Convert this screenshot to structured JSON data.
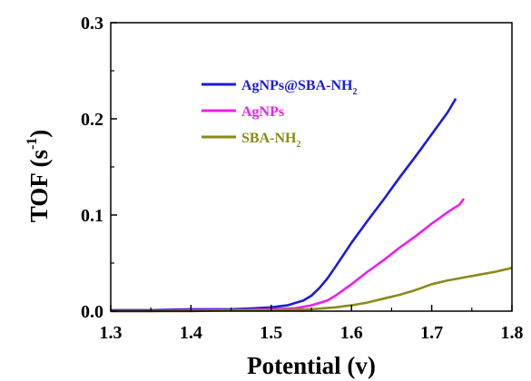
{
  "chart_data": {
    "type": "line",
    "xlabel": "Potential (v)",
    "ylabel": "TOF (s",
    "ylabel_sup": "-1",
    "ylabel_close": ")",
    "xlim": [
      1.3,
      1.8
    ],
    "ylim": [
      0.0,
      0.3
    ],
    "xticks": [
      "1.3",
      "1.4",
      "1.5",
      "1.6",
      "1.7",
      "1.8"
    ],
    "yticks": [
      "0.0",
      "0.1",
      "0.2",
      "0.3"
    ],
    "grid": false,
    "legend_position": "upper-left-center",
    "series": [
      {
        "name": "AgNPs@SBA-NH",
        "name_sub": "2",
        "color": "#1c1cd6",
        "x": [
          1.3,
          1.35,
          1.4,
          1.45,
          1.48,
          1.5,
          1.52,
          1.54,
          1.55,
          1.56,
          1.57,
          1.58,
          1.6,
          1.62,
          1.64,
          1.66,
          1.68,
          1.7,
          1.72,
          1.73
        ],
        "y": [
          0.001,
          0.001,
          0.002,
          0.002,
          0.003,
          0.004,
          0.006,
          0.011,
          0.016,
          0.024,
          0.034,
          0.046,
          0.071,
          0.094,
          0.116,
          0.139,
          0.161,
          0.184,
          0.207,
          0.221
        ]
      },
      {
        "name": "AgNPs",
        "color": "#ee1eee",
        "x": [
          1.3,
          1.35,
          1.4,
          1.45,
          1.5,
          1.53,
          1.55,
          1.57,
          1.58,
          1.6,
          1.62,
          1.64,
          1.66,
          1.68,
          1.7,
          1.72,
          1.735,
          1.74
        ],
        "y": [
          0.0,
          0.0,
          0.001,
          0.001,
          0.002,
          0.003,
          0.006,
          0.011,
          0.016,
          0.028,
          0.041,
          0.053,
          0.066,
          0.078,
          0.091,
          0.103,
          0.111,
          0.117
        ]
      },
      {
        "name": "SBA-NH",
        "name_sub": "2",
        "color": "#8a8a1a",
        "x": [
          1.3,
          1.35,
          1.4,
          1.45,
          1.5,
          1.55,
          1.58,
          1.6,
          1.62,
          1.64,
          1.66,
          1.68,
          1.7,
          1.72,
          1.74,
          1.76,
          1.78,
          1.8
        ],
        "y": [
          0.0,
          0.0,
          0.0,
          0.001,
          0.001,
          0.002,
          0.004,
          0.006,
          0.009,
          0.013,
          0.017,
          0.022,
          0.028,
          0.032,
          0.035,
          0.038,
          0.041,
          0.045
        ]
      }
    ]
  }
}
